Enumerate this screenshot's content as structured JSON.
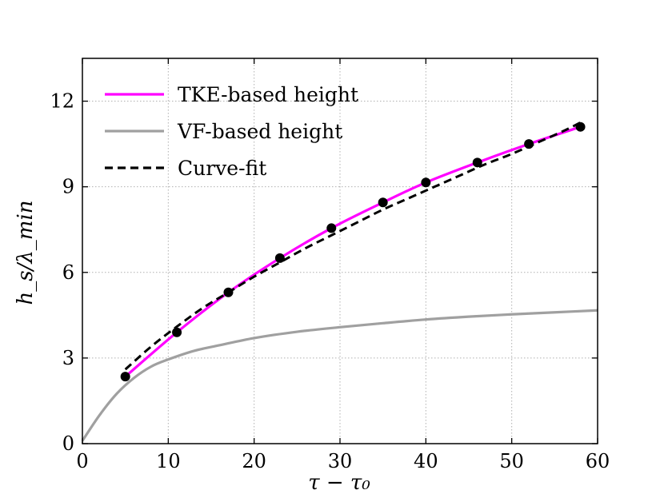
{
  "chart_data": {
    "type": "line",
    "title": "",
    "xlabel": "τ − τ₀",
    "ylabel": "h_s/λ_min",
    "xlim": [
      0,
      60
    ],
    "ylim": [
      0,
      13.5
    ],
    "xticks": [
      0,
      10,
      20,
      30,
      40,
      50,
      60
    ],
    "yticks": [
      0,
      3,
      6,
      9,
      12
    ],
    "grid": true,
    "legend_position": "top-left",
    "series": [
      {
        "name": "TKE-based height",
        "style": "solid",
        "color": "#ff00ff",
        "x": [
          5,
          11,
          17,
          23,
          29,
          35,
          40,
          46,
          52,
          58
        ],
        "y": [
          2.35,
          3.9,
          5.3,
          6.5,
          7.55,
          8.45,
          9.15,
          9.85,
          10.5,
          11.1
        ]
      },
      {
        "name": "VF-based height",
        "style": "solid",
        "color": "#a0a0a0",
        "x": [
          0,
          2,
          4,
          6,
          8,
          10,
          13,
          16,
          20,
          25,
          30,
          35,
          40,
          45,
          50,
          55,
          60
        ],
        "y": [
          0.1,
          1.0,
          1.75,
          2.3,
          2.7,
          2.95,
          3.25,
          3.45,
          3.7,
          3.92,
          4.08,
          4.22,
          4.35,
          4.45,
          4.53,
          4.6,
          4.67
        ]
      },
      {
        "name": "Curve-fit",
        "style": "dashed",
        "color": "#000000",
        "x": [
          5,
          8,
          11,
          14,
          17,
          20,
          23,
          26,
          29,
          32,
          35,
          38,
          41,
          44,
          47,
          50,
          53,
          56,
          58
        ],
        "y": [
          2.6,
          3.4,
          4.1,
          4.75,
          5.3,
          5.85,
          6.35,
          6.85,
          7.3,
          7.75,
          8.2,
          8.6,
          9.0,
          9.4,
          9.8,
          10.15,
          10.55,
          10.95,
          11.25
        ]
      }
    ],
    "markers": {
      "x": [
        5,
        11,
        17,
        23,
        29,
        35,
        40,
        46,
        52,
        58
      ],
      "y": [
        2.35,
        3.9,
        5.3,
        6.5,
        7.55,
        8.45,
        9.15,
        9.85,
        10.5,
        11.1
      ],
      "color": "#000000"
    }
  }
}
